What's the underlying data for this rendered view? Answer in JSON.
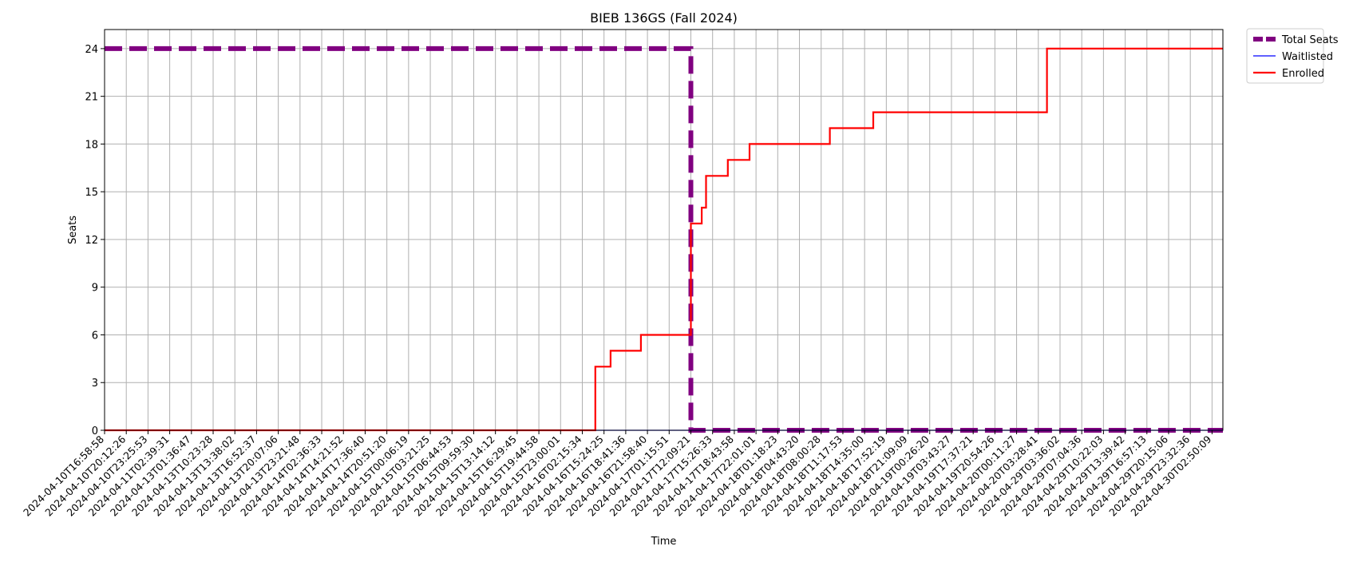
{
  "chart_data": {
    "type": "line",
    "title": "BIEB 136GS (Fall 2024)",
    "xlabel": "Time",
    "ylabel": "Seats",
    "ylim": [
      0,
      25.2
    ],
    "yticks": [
      0,
      3,
      6,
      9,
      12,
      15,
      18,
      21,
      24
    ],
    "grid": true,
    "legend_position": "outside-top-right",
    "x_categories": [
      "2024-04-10T16:58:58",
      "2024-04-10T20:12:26",
      "2024-04-10T23:25:53",
      "2024-04-11T02:39:31",
      "2024-04-13T01:36:47",
      "2024-04-13T10:23:28",
      "2024-04-13T13:38:02",
      "2024-04-13T16:52:37",
      "2024-04-13T20:07:06",
      "2024-04-13T23:21:48",
      "2024-04-14T02:36:33",
      "2024-04-14T14:21:52",
      "2024-04-14T17:36:40",
      "2024-04-14T20:51:20",
      "2024-04-15T00:06:19",
      "2024-04-15T03:21:25",
      "2024-04-15T06:44:53",
      "2024-04-15T09:59:30",
      "2024-04-15T13:14:12",
      "2024-04-15T16:29:45",
      "2024-04-15T19:44:58",
      "2024-04-15T23:00:01",
      "2024-04-16T02:15:34",
      "2024-04-16T15:24:25",
      "2024-04-16T18:41:36",
      "2024-04-16T21:58:40",
      "2024-04-17T01:15:51",
      "2024-04-17T12:09:21",
      "2024-04-17T15:26:33",
      "2024-04-17T18:43:58",
      "2024-04-17T22:01:01",
      "2024-04-18T01:18:23",
      "2024-04-18T04:43:20",
      "2024-04-18T08:00:28",
      "2024-04-18T11:17:53",
      "2024-04-18T14:35:00",
      "2024-04-18T17:52:19",
      "2024-04-18T21:09:09",
      "2024-04-19T00:26:20",
      "2024-04-19T03:43:27",
      "2024-04-19T17:37:21",
      "2024-04-19T20:54:26",
      "2024-04-20T00:11:27",
      "2024-04-20T03:28:41",
      "2024-04-29T03:36:02",
      "2024-04-29T07:04:36",
      "2024-04-29T10:22:03",
      "2024-04-29T13:39:42",
      "2024-04-29T16:57:13",
      "2024-04-29T20:15:06",
      "2024-04-29T23:32:36",
      "2024-04-30T02:50:09"
    ],
    "x_max_index": 51.5,
    "series": [
      {
        "name": "Total Seats",
        "color": "#800080",
        "style": "dashed-thick",
        "points": [
          [
            0,
            24
          ],
          [
            27.0,
            24
          ],
          [
            27.0,
            0
          ],
          [
            51.5,
            0
          ]
        ]
      },
      {
        "name": "Waitlisted",
        "color": "#0000ff",
        "style": "thin",
        "points": [
          [
            0,
            0
          ],
          [
            51.5,
            0
          ]
        ]
      },
      {
        "name": "Enrolled",
        "color": "#ff0000",
        "style": "solid",
        "points": [
          [
            0,
            0
          ],
          [
            22.6,
            0
          ],
          [
            22.6,
            4
          ],
          [
            23.3,
            4
          ],
          [
            23.3,
            5
          ],
          [
            24.7,
            5
          ],
          [
            24.7,
            6
          ],
          [
            27.0,
            6
          ],
          [
            27.0,
            13
          ],
          [
            27.5,
            13
          ],
          [
            27.5,
            14
          ],
          [
            27.7,
            14
          ],
          [
            27.7,
            16
          ],
          [
            28.7,
            16
          ],
          [
            28.7,
            17
          ],
          [
            29.7,
            17
          ],
          [
            29.7,
            18
          ],
          [
            33.4,
            18
          ],
          [
            33.4,
            19
          ],
          [
            35.4,
            19
          ],
          [
            35.4,
            20
          ],
          [
            43.4,
            20
          ],
          [
            43.4,
            24
          ],
          [
            51.5,
            24
          ]
        ]
      }
    ]
  }
}
